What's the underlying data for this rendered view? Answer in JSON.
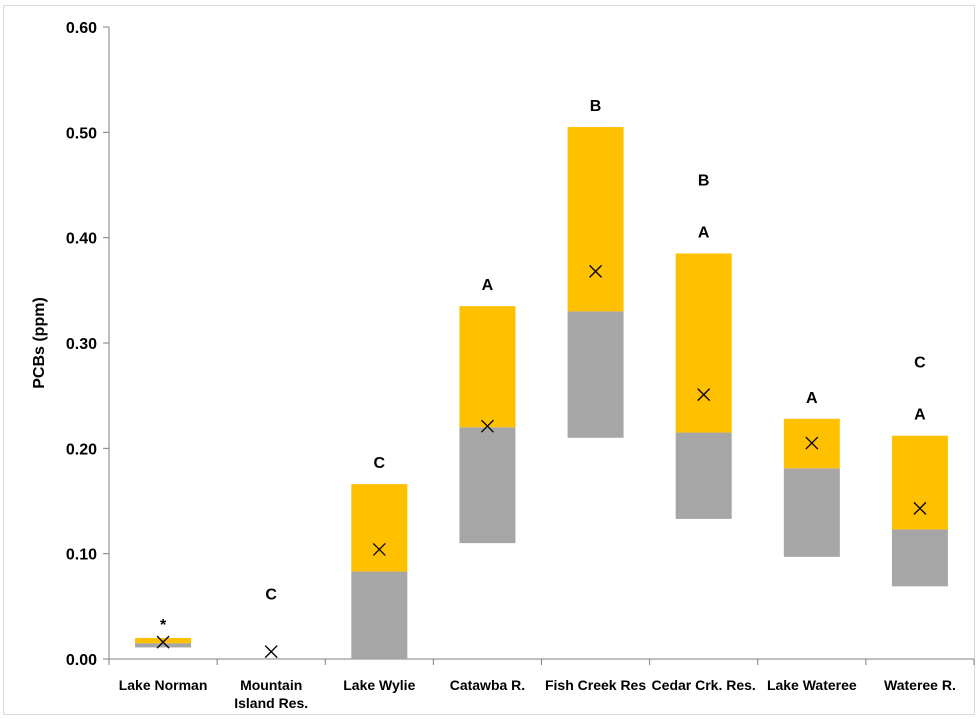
{
  "chart_data": {
    "type": "bar",
    "subtype": "stacked-range-with-mean",
    "title": "",
    "xlabel": "",
    "ylabel": "PCBs (ppm)",
    "ylim": [
      0,
      0.6
    ],
    "yticks": [
      "0.00",
      "0.10",
      "0.20",
      "0.30",
      "0.40",
      "0.50",
      "0.60"
    ],
    "grid": false,
    "legend": "none",
    "categories": [
      [
        "Lake Norman"
      ],
      [
        "Mountain",
        "Island Res."
      ],
      [
        "Lake Wylie"
      ],
      [
        "Catawba R."
      ],
      [
        "Fish Creek Res"
      ],
      [
        "Cedar Crk. Res."
      ],
      [
        "Lake Wateree"
      ],
      [
        "Wateree R."
      ]
    ],
    "series": [
      {
        "color": "#a6a6a6",
        "low": [
          0.011,
          null,
          0.0,
          0.11,
          0.21,
          0.133,
          0.097,
          0.069
        ],
        "high": [
          0.015,
          null,
          0.083,
          0.22,
          0.33,
          0.215,
          0.181,
          0.123
        ]
      },
      {
        "color": "#ffc000",
        "low": [
          0.015,
          null,
          0.083,
          0.22,
          0.33,
          0.215,
          0.181,
          0.123
        ],
        "high": [
          0.02,
          null,
          0.166,
          0.335,
          0.505,
          0.385,
          0.228,
          0.212
        ]
      }
    ],
    "mean": {
      "marker": "x",
      "values": [
        0.016,
        0.007,
        0.104,
        0.221,
        0.368,
        0.251,
        0.205,
        0.143
      ]
    },
    "annotations": [
      [
        "*"
      ],
      [
        "C"
      ],
      [
        "C"
      ],
      [
        "A"
      ],
      [
        "B"
      ],
      [
        "B",
        "A"
      ],
      [
        "A"
      ],
      [
        "C",
        "A"
      ]
    ]
  }
}
